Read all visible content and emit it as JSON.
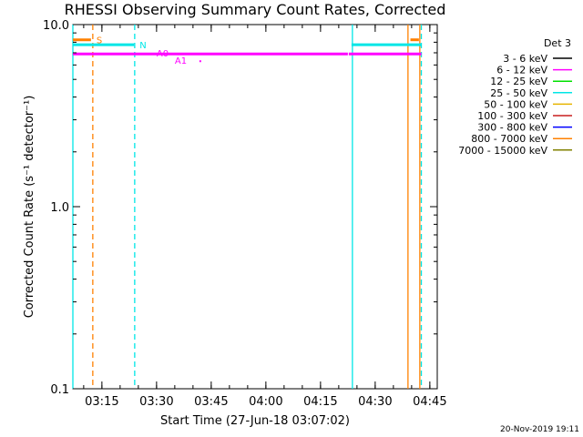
{
  "chart_data": {
    "type": "line",
    "title": "RHESSI Observing Summary Count Rates, Corrected",
    "xlabel": "Start Time (27-Jun-18 03:07:02)",
    "ylabel": "Corrected Count Rate (s⁻¹ detector⁻¹)",
    "y_scale": "log",
    "ylim": [
      0.1,
      10.0
    ],
    "y_ticks": [
      "10.0",
      "1.0",
      "0.1"
    ],
    "xlim": [
      "03:07:02",
      "04:47:02"
    ],
    "x_ticks": [
      "03:15",
      "03:30",
      "03:45",
      "04:00",
      "04:15",
      "04:30",
      "04:45"
    ],
    "legend": {
      "title": "Det 3",
      "position": "right",
      "entries": [
        {
          "label": "3 - 6 keV",
          "color": "#000000"
        },
        {
          "label": "6 - 12 keV",
          "color": "#ff00ff"
        },
        {
          "label": "12 - 25 keV",
          "color": "#00e000"
        },
        {
          "label": "25 - 50 keV",
          "color": "#00e6e6"
        },
        {
          "label": "50 - 100 keV",
          "color": "#e6b400"
        },
        {
          "label": "100 - 300 keV",
          "color": "#c81e1e"
        },
        {
          "label": "300 - 800 keV",
          "color": "#0000ff"
        },
        {
          "label": "800 - 7000 keV",
          "color": "#ff8000"
        },
        {
          "label": "7000 - 15000 keV",
          "color": "#808000"
        }
      ]
    },
    "series": [
      {
        "name": "6 - 12 keV",
        "color": "#ff00ff",
        "segments": [
          {
            "x_start": "03:07:02",
            "x_end": "04:22:30",
            "y": 6.9
          },
          {
            "x_start": "04:22:45",
            "x_end": "04:42:40",
            "y": 6.9
          }
        ]
      }
    ],
    "flag_bars": [
      {
        "label": "S",
        "color": "#ff8000",
        "y": 8.25,
        "segments": [
          {
            "x_start": "03:07:02",
            "x_end": "03:12:00"
          },
          {
            "x_start": "04:39:40",
            "x_end": "04:42:00"
          }
        ]
      },
      {
        "label": "N",
        "color": "#00e6e6",
        "y": 7.75,
        "segments": [
          {
            "x_start": "03:07:02",
            "x_end": "03:23:50"
          },
          {
            "x_start": "04:23:30",
            "x_end": "04:42:40"
          }
        ]
      }
    ],
    "attenuator_markers": [
      {
        "label": "A0",
        "x": "03:37:00",
        "color": "#ff00ff"
      },
      {
        "label": "A1",
        "x": "03:42:00",
        "color": "#ff00ff"
      }
    ],
    "vertical_lines": [
      {
        "x": "03:07:02",
        "color": "#00e6e6",
        "style": "solid"
      },
      {
        "x": "03:12:30",
        "color": "#ff8000",
        "style": "dashed"
      },
      {
        "x": "03:24:00",
        "color": "#00e6e6",
        "style": "dashed"
      },
      {
        "x": "04:23:45",
        "color": "#00e6e6",
        "style": "solid"
      },
      {
        "x": "04:39:00",
        "color": "#ff8000",
        "style": "solid"
      },
      {
        "x": "04:42:15",
        "color": "#ff8000",
        "style": "solid"
      },
      {
        "x": "04:42:40",
        "color": "#00e6e6",
        "style": "dashed"
      }
    ],
    "grid": false
  },
  "footer": {
    "timestamp": "20-Nov-2019 19:11"
  }
}
